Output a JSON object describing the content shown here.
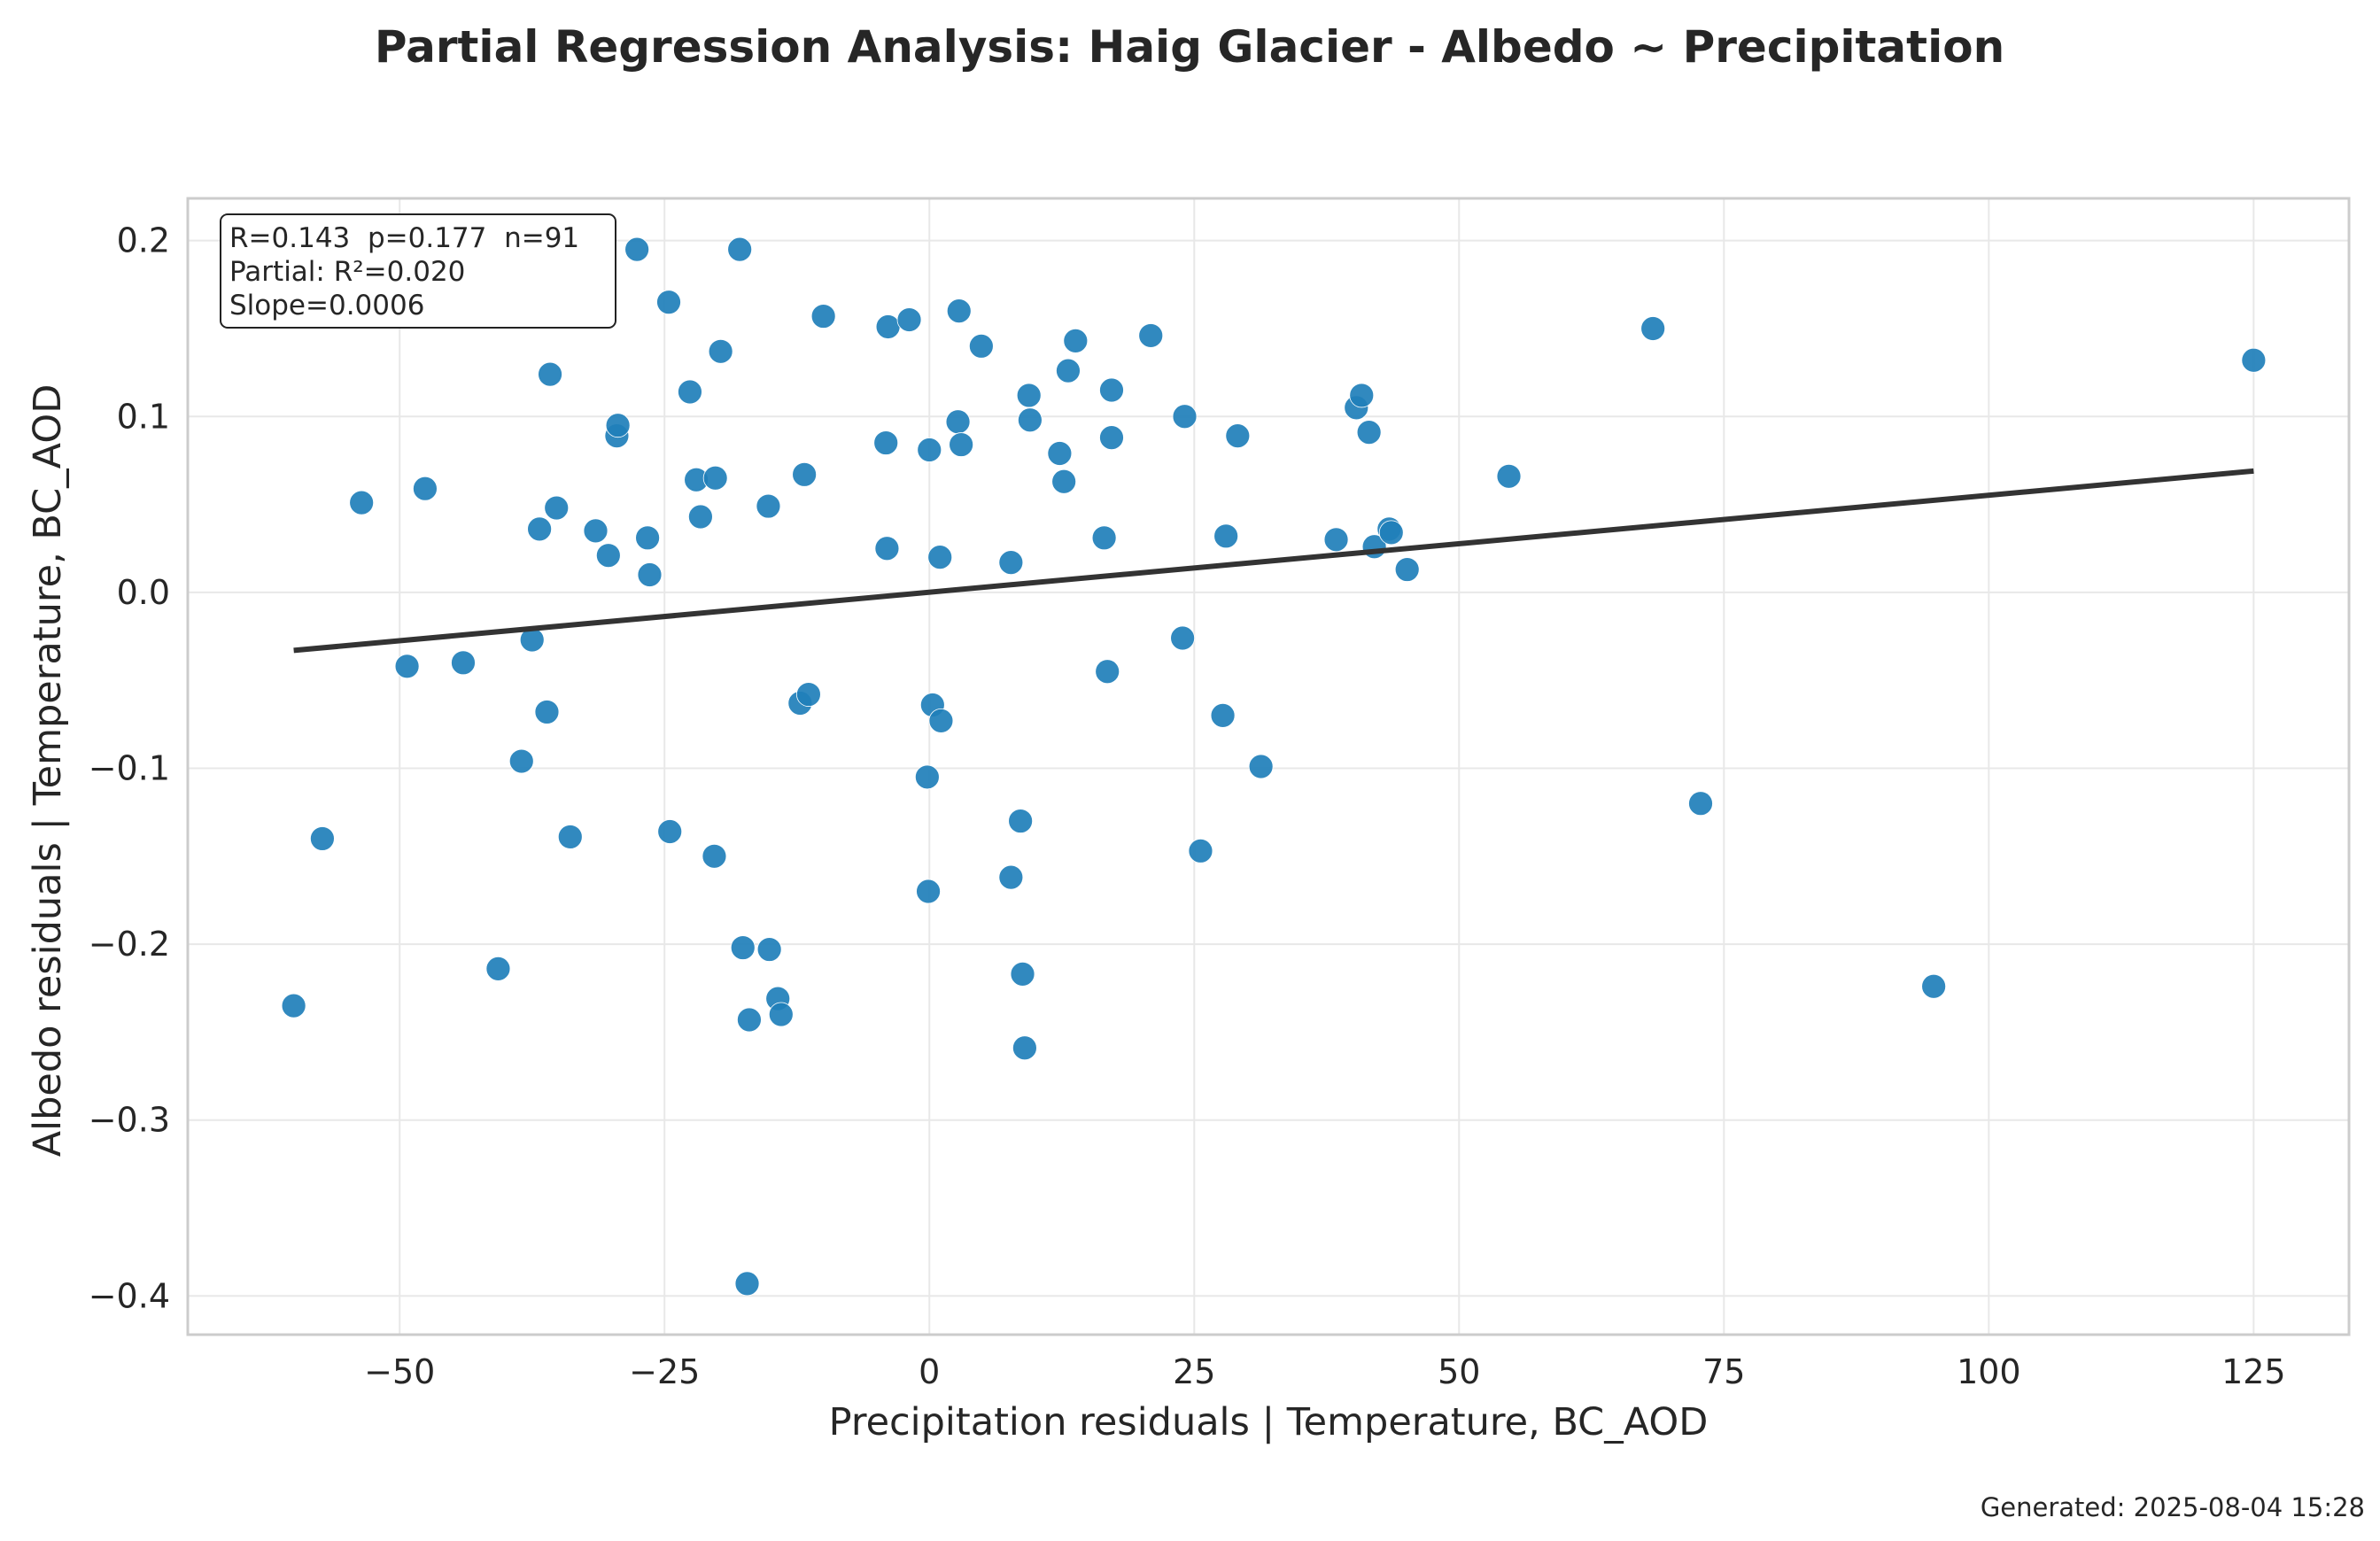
{
  "chart_data": {
    "type": "scatter",
    "title": "Partial Regression Analysis: Haig Glacier - Albedo ~ Precipitation",
    "xlabel": "Precipitation residuals | Temperature, BC_AOD",
    "ylabel": "Albedo residuals | Temperature, BC_AOD",
    "xlim": [
      -70,
      134
    ],
    "ylim": [
      -0.422,
      0.224
    ],
    "xticks": [
      -50,
      -25,
      0,
      25,
      50,
      75,
      100,
      125
    ],
    "xtick_labels": [
      "−50",
      "−25",
      "0",
      "25",
      "50",
      "75",
      "100",
      "125"
    ],
    "yticks": [
      -0.4,
      -0.3,
      -0.2,
      -0.1,
      0.0,
      0.1,
      0.2
    ],
    "ytick_labels": [
      "−0.4",
      "−0.3",
      "−0.2",
      "−0.1",
      "0.0",
      "0.1",
      "0.2"
    ],
    "grid": true,
    "point_color": "#1f7fba",
    "line_color": "#333333",
    "fit_line": {
      "x": [
        -60,
        125
      ],
      "y": [
        -0.033,
        0.069
      ]
    },
    "stats": [
      "R=0.143  p=0.177  n=91",
      "Partial: R²=0.020",
      "Slope=0.0006"
    ],
    "footer": "Generated: 2025-08-04 15:28",
    "points": [
      [
        -60.0,
        -0.235
      ],
      [
        -57.3,
        -0.14
      ],
      [
        -53.6,
        0.051
      ],
      [
        -49.3,
        -0.042
      ],
      [
        -47.6,
        0.059
      ],
      [
        -44.0,
        -0.04
      ],
      [
        -40.7,
        -0.214
      ],
      [
        -38.5,
        -0.096
      ],
      [
        -37.5,
        -0.027
      ],
      [
        -36.8,
        0.036
      ],
      [
        -36.1,
        -0.068
      ],
      [
        -35.8,
        0.124
      ],
      [
        -35.2,
        0.048
      ],
      [
        -33.9,
        -0.139
      ],
      [
        -31.5,
        0.035
      ],
      [
        -30.3,
        0.021
      ],
      [
        -29.5,
        0.089
      ],
      [
        -29.4,
        0.095
      ],
      [
        -27.6,
        0.195
      ],
      [
        -26.6,
        0.031
      ],
      [
        -26.4,
        0.01
      ],
      [
        -24.6,
        0.165
      ],
      [
        -24.5,
        -0.136
      ],
      [
        -22.6,
        0.114
      ],
      [
        -22.0,
        0.064
      ],
      [
        -21.6,
        0.043
      ],
      [
        -20.3,
        -0.15
      ],
      [
        -20.2,
        0.065
      ],
      [
        -19.7,
        0.137
      ],
      [
        -17.9,
        0.195
      ],
      [
        -17.6,
        -0.202
      ],
      [
        -17.2,
        -0.393
      ],
      [
        -17.0,
        -0.243
      ],
      [
        -15.1,
        -0.203
      ],
      [
        -15.2,
        0.049
      ],
      [
        -14.3,
        -0.231
      ],
      [
        -14.0,
        -0.24
      ],
      [
        -12.2,
        -0.063
      ],
      [
        -11.8,
        0.067
      ],
      [
        -11.4,
        -0.058
      ],
      [
        -10.0,
        0.157
      ],
      [
        -4.1,
        0.085
      ],
      [
        -4.0,
        0.025
      ],
      [
        -3.9,
        0.151
      ],
      [
        -1.9,
        0.155
      ],
      [
        -0.2,
        -0.105
      ],
      [
        -0.1,
        -0.17
      ],
      [
        0.0,
        0.081
      ],
      [
        0.3,
        -0.064
      ],
      [
        1.0,
        0.02
      ],
      [
        1.1,
        -0.073
      ],
      [
        2.7,
        0.097
      ],
      [
        2.8,
        0.16
      ],
      [
        3.0,
        0.084
      ],
      [
        4.9,
        0.14
      ],
      [
        7.7,
        -0.162
      ],
      [
        7.7,
        0.017
      ],
      [
        8.6,
        -0.13
      ],
      [
        8.8,
        -0.217
      ],
      [
        9.0,
        -0.259
      ],
      [
        9.4,
        0.112
      ],
      [
        9.5,
        0.098
      ],
      [
        12.3,
        0.079
      ],
      [
        12.7,
        0.063
      ],
      [
        13.1,
        0.126
      ],
      [
        13.8,
        0.143
      ],
      [
        16.5,
        0.031
      ],
      [
        16.8,
        -0.045
      ],
      [
        17.2,
        0.088
      ],
      [
        17.2,
        0.115
      ],
      [
        20.9,
        0.146
      ],
      [
        23.9,
        -0.026
      ],
      [
        24.1,
        0.1
      ],
      [
        25.6,
        -0.147
      ],
      [
        27.7,
        -0.07
      ],
      [
        28.0,
        0.032
      ],
      [
        29.1,
        0.089
      ],
      [
        31.3,
        -0.099
      ],
      [
        38.4,
        0.03
      ],
      [
        40.3,
        0.105
      ],
      [
        40.8,
        0.112
      ],
      [
        41.5,
        0.091
      ],
      [
        42.0,
        0.026
      ],
      [
        43.4,
        0.036
      ],
      [
        43.6,
        0.034
      ],
      [
        45.1,
        0.013
      ],
      [
        54.7,
        0.066
      ],
      [
        68.3,
        0.15
      ],
      [
        72.8,
        -0.12
      ],
      [
        94.8,
        -0.224
      ],
      [
        125.0,
        0.132
      ]
    ]
  }
}
